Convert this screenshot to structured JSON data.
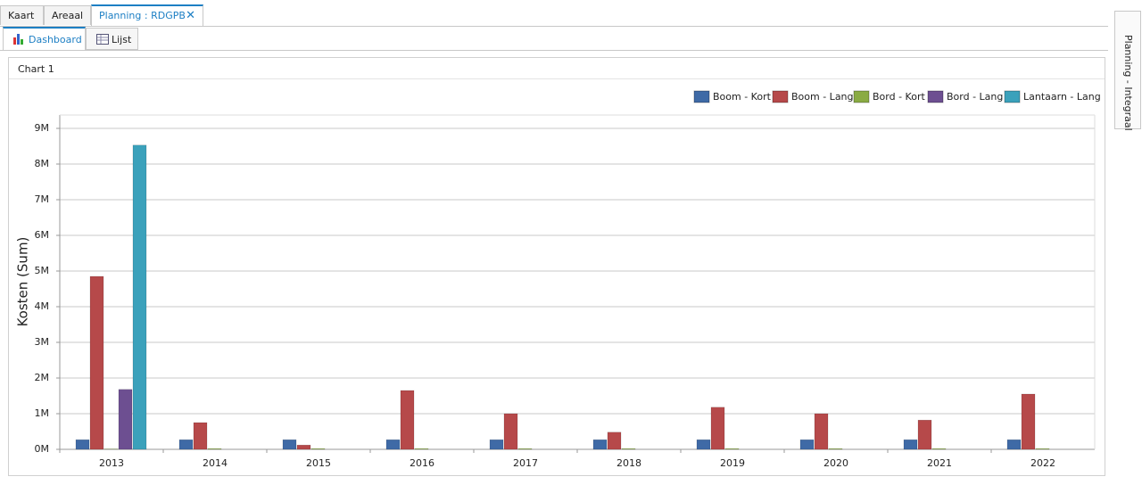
{
  "tabs": [
    "Kaart",
    "Areaal",
    "Planning : RDGPB"
  ],
  "subtabs": [
    "Dashboard",
    "Lijst"
  ],
  "panel_title": "Chart 1",
  "side_tab": "Planning - Integraal",
  "chart_data": {
    "type": "bar",
    "y_label": "Kosten (Sum)",
    "categories": [
      "2013",
      "2014",
      "2015",
      "2016",
      "2017",
      "2018",
      "2019",
      "2020",
      "2021",
      "2022"
    ],
    "series": [
      {
        "name": "Boom - Kort",
        "color": "#3f6aa6",
        "values": [
          0.27,
          0.27,
          0.27,
          0.27,
          0.27,
          0.27,
          0.27,
          0.27,
          0.27,
          0.27
        ]
      },
      {
        "name": "Boom - Lang",
        "color": "#b6494a",
        "values": [
          4.85,
          0.75,
          0.12,
          1.65,
          1.0,
          0.48,
          1.18,
          1.0,
          0.82,
          1.55
        ]
      },
      {
        "name": "Bord - Kort",
        "color": "#8aab44",
        "values": [
          0.01,
          0.02,
          0.02,
          0.02,
          0.02,
          0.02,
          0.02,
          0.02,
          0.02,
          0.02
        ]
      },
      {
        "name": "Bord - Lang",
        "color": "#6d4f91",
        "values": [
          1.68,
          0,
          0,
          0,
          0,
          0,
          0,
          0,
          0,
          0
        ]
      },
      {
        "name": "Lantaarn - Lang",
        "color": "#3ba1bb",
        "values": [
          8.53,
          0,
          0,
          0,
          0,
          0,
          0,
          0,
          0,
          0
        ]
      }
    ],
    "ylim": [
      0,
      9
    ],
    "yticks": [
      {
        "value": 0,
        "label": "0M"
      },
      {
        "value": 1,
        "label": "1M"
      },
      {
        "value": 2,
        "label": "2M"
      },
      {
        "value": 3,
        "label": "3M"
      },
      {
        "value": 4,
        "label": "4M"
      },
      {
        "value": 5,
        "label": "5M"
      },
      {
        "value": 6,
        "label": "6M"
      },
      {
        "value": 7,
        "label": "7M"
      },
      {
        "value": 8,
        "label": "8M"
      },
      {
        "value": 9,
        "label": "9M"
      }
    ],
    "grid": true,
    "legend": "top-right"
  }
}
